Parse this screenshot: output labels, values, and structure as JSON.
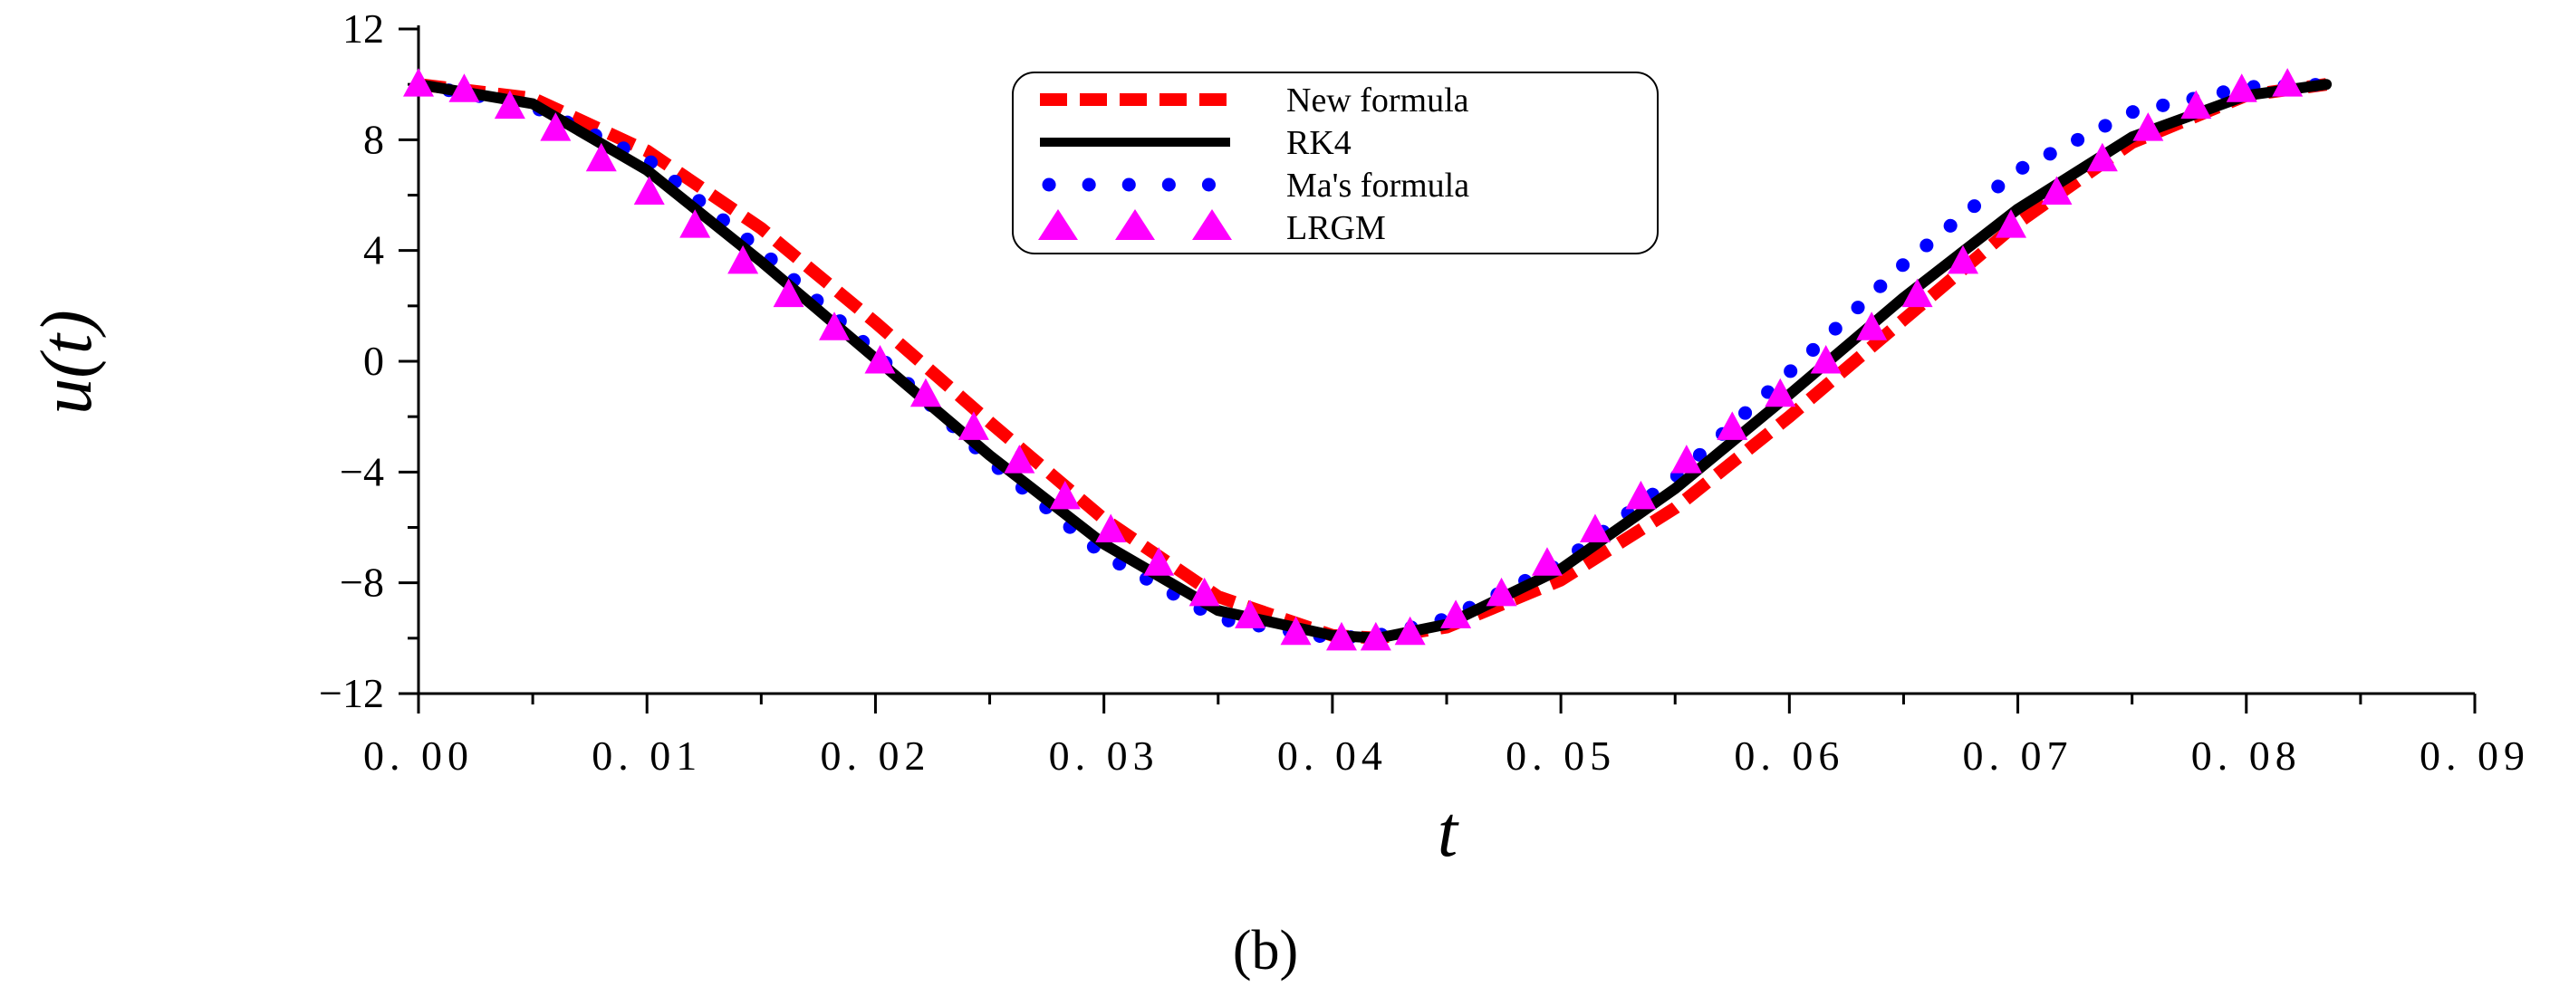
{
  "chart_data": {
    "type": "line",
    "title": "",
    "xlabel": "t",
    "ylabel": "u(t)",
    "panel_label": "(b)",
    "xlim": [
      0.0,
      0.09
    ],
    "ylim": [
      -12,
      12
    ],
    "x_ticks": [
      0.0,
      0.01,
      0.02,
      0.03,
      0.04,
      0.05,
      0.06,
      0.07,
      0.08,
      0.09
    ],
    "x_tick_labels": [
      "0. 00",
      "0. 01",
      "0. 02",
      "0. 03",
      "0. 04",
      "0. 05",
      "0. 06",
      "0. 07",
      "0. 08",
      "0. 09"
    ],
    "y_ticks": [
      -12,
      -8,
      -4,
      0,
      4,
      8,
      12
    ],
    "y_tick_labels": [
      "−12",
      "−8",
      "−4",
      "0",
      "4",
      "8",
      "12"
    ],
    "grid": false,
    "legend_position": "top-center",
    "series": [
      {
        "name": "New formula",
        "style": "dashed",
        "color": "#ff0000",
        "x": [
          0.0,
          0.005,
          0.01,
          0.015,
          0.02,
          0.025,
          0.03,
          0.035,
          0.04,
          0.042,
          0.045,
          0.05,
          0.055,
          0.06,
          0.065,
          0.07,
          0.075,
          0.08,
          0.0835
        ],
        "y": [
          10.0,
          9.5,
          7.6,
          4.8,
          1.4,
          -2.2,
          -5.7,
          -8.5,
          -9.9,
          -10.0,
          -9.6,
          -7.9,
          -5.3,
          -2.0,
          1.5,
          5.0,
          7.9,
          9.6,
          10.0
        ]
      },
      {
        "name": "RK4",
        "style": "solid",
        "color": "#000000",
        "x": [
          0.0,
          0.005,
          0.01,
          0.015,
          0.02,
          0.025,
          0.03,
          0.035,
          0.04,
          0.042,
          0.045,
          0.05,
          0.055,
          0.06,
          0.065,
          0.07,
          0.075,
          0.08,
          0.0835
        ],
        "y": [
          10.0,
          9.3,
          6.9,
          3.6,
          0.1,
          -3.4,
          -6.6,
          -9.0,
          -9.9,
          -10.0,
          -9.5,
          -7.5,
          -4.6,
          -1.2,
          2.3,
          5.5,
          8.1,
          9.6,
          10.0
        ]
      },
      {
        "name": "Ma's formula",
        "style": "dotted",
        "color": "#0000ff",
        "x": [
          0.0,
          0.005,
          0.01,
          0.015,
          0.02,
          0.025,
          0.03,
          0.035,
          0.04,
          0.042,
          0.045,
          0.05,
          0.055,
          0.06,
          0.065,
          0.07,
          0.075,
          0.08,
          0.0835
        ],
        "y": [
          10.0,
          9.2,
          7.3,
          4.0,
          0.3,
          -3.6,
          -7.0,
          -9.3,
          -10.0,
          -9.9,
          -9.3,
          -7.3,
          -4.2,
          -0.4,
          3.5,
          6.9,
          9.0,
          9.9,
          10.0
        ]
      },
      {
        "name": "LRGM",
        "style": "triangle",
        "color": "#ff00ff",
        "x": [
          0.0,
          0.002,
          0.004,
          0.006,
          0.008,
          0.0101,
          0.0121,
          0.0142,
          0.0162,
          0.0182,
          0.0202,
          0.0222,
          0.0243,
          0.0263,
          0.0283,
          0.0303,
          0.0324,
          0.0344,
          0.0364,
          0.0384,
          0.0404,
          0.0419,
          0.0434,
          0.0454,
          0.0474,
          0.0494,
          0.0515,
          0.0535,
          0.0555,
          0.0575,
          0.0596,
          0.0616,
          0.0636,
          0.0656,
          0.0676,
          0.0697,
          0.0717,
          0.0737,
          0.0757,
          0.0778,
          0.0798,
          0.0818
        ],
        "y": [
          10.0,
          9.8,
          9.2,
          8.4,
          7.3,
          6.1,
          4.9,
          3.6,
          2.4,
          1.2,
          0.0,
          -1.2,
          -2.4,
          -3.6,
          -4.9,
          -6.1,
          -7.3,
          -8.4,
          -9.2,
          -9.8,
          -10.0,
          -10.0,
          -9.8,
          -9.2,
          -8.4,
          -7.3,
          -6.1,
          -4.9,
          -3.6,
          -2.4,
          -1.2,
          0.0,
          1.2,
          2.4,
          3.6,
          4.9,
          6.1,
          7.3,
          8.4,
          9.2,
          9.8,
          10.0
        ]
      }
    ]
  }
}
